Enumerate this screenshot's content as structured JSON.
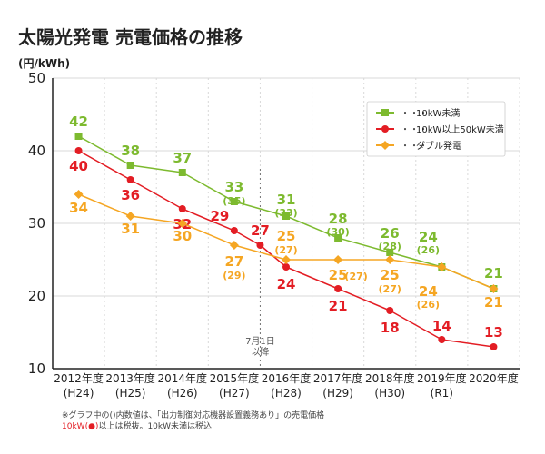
{
  "chart_data": {
    "type": "line",
    "title": "太陽光発電 売電価格の推移",
    "ylabel": "(円/kWh)",
    "ylim": [
      10,
      50
    ],
    "y_ticks": [
      10,
      20,
      30,
      40,
      50
    ],
    "grid": true,
    "legend_position": "top-right",
    "categories": [
      {
        "year": "2012年度",
        "era": "(H24)"
      },
      {
        "year": "2013年度",
        "era": "(H25)"
      },
      {
        "year": "2014年度",
        "era": "(H26)"
      },
      {
        "year": "2015年度",
        "era": "(H27)"
      },
      {
        "year": "2016年度",
        "era": "(H28)"
      },
      {
        "year": "2017年度",
        "era": "(H29)"
      },
      {
        "year": "2018年度",
        "era": "(H30)"
      },
      {
        "year": "2019年度",
        "era": "(R1)"
      },
      {
        "year": "2020年度",
        "era": ""
      }
    ],
    "series": [
      {
        "name": "10kW未満",
        "color": "#7dba2f",
        "marker": "square",
        "points": [
          {
            "x": 0,
            "y": 42,
            "label": "42",
            "sub": ""
          },
          {
            "x": 1,
            "y": 38,
            "label": "38",
            "sub": ""
          },
          {
            "x": 2,
            "y": 37,
            "label": "37",
            "sub": ""
          },
          {
            "x": 3,
            "y": 33,
            "label": "33",
            "sub": "(35)"
          },
          {
            "x": 4,
            "y": 31,
            "label": "31",
            "sub": "(33)"
          },
          {
            "x": 5,
            "y": 28,
            "label": "28",
            "sub": "(30)"
          },
          {
            "x": 6,
            "y": 26,
            "label": "26",
            "sub": "(28)"
          },
          {
            "x": 7,
            "y": 24,
            "label": "24",
            "sub": "(26)"
          },
          {
            "x": 8,
            "y": 21,
            "label": "21",
            "sub": ""
          }
        ]
      },
      {
        "name": "10kW以上50kW未満",
        "color": "#e31d24",
        "marker": "circle",
        "points": [
          {
            "x": 0,
            "y": 40,
            "label": "40",
            "sub": ""
          },
          {
            "x": 1,
            "y": 36,
            "label": "36",
            "sub": ""
          },
          {
            "x": 2,
            "y": 32,
            "label": "32",
            "sub": ""
          },
          {
            "x": 3,
            "y": 29,
            "label": "29",
            "sub": ""
          },
          {
            "x": 3.5,
            "y": 27,
            "label": "27",
            "sub": ""
          },
          {
            "x": 4,
            "y": 24,
            "label": "24",
            "sub": ""
          },
          {
            "x": 5,
            "y": 21,
            "label": "21",
            "sub": ""
          },
          {
            "x": 6,
            "y": 18,
            "label": "18",
            "sub": ""
          },
          {
            "x": 7,
            "y": 14,
            "label": "14",
            "sub": ""
          },
          {
            "x": 8,
            "y": 13,
            "label": "13",
            "sub": ""
          }
        ]
      },
      {
        "name": "ダブル発電",
        "color": "#f5a623",
        "marker": "diamond",
        "points": [
          {
            "x": 0,
            "y": 34,
            "label": "34",
            "sub": ""
          },
          {
            "x": 1,
            "y": 31,
            "label": "31",
            "sub": ""
          },
          {
            "x": 2,
            "y": 30,
            "label": "30",
            "sub": ""
          },
          {
            "x": 3,
            "y": 27,
            "label": "27",
            "sub": "(29)"
          },
          {
            "x": 4,
            "y": 25,
            "label": "25",
            "sub": "(27)"
          },
          {
            "x": 5,
            "y": 25,
            "label": "25",
            "sub": "(27)"
          },
          {
            "x": 6,
            "y": 25,
            "label": "25",
            "sub": "(27)"
          },
          {
            "x": 7,
            "y": 24,
            "label": "24",
            "sub": "(26)"
          },
          {
            "x": 8,
            "y": 21,
            "label": "21",
            "sub": ""
          }
        ]
      }
    ],
    "annotation": {
      "x": 3.5,
      "text_line1": "7月1日",
      "text_line2": "以降"
    },
    "footnotes": [
      "※グラフ中の()内数値は、「出力制御対応機器設置義務あり」の売電価格",
      "10kW(●)以上は税抜。10kW未満は税込"
    ],
    "footnote_highlight": "10kW(●)"
  },
  "colors": {
    "axis": "#222222",
    "grid": "#d9d9d9",
    "title": "#222222",
    "text": "#222222"
  }
}
